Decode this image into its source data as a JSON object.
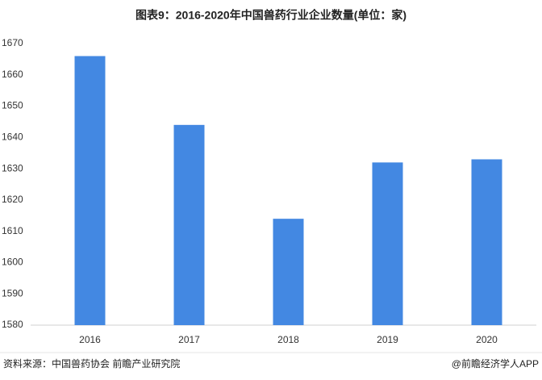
{
  "chart_data": {
    "type": "bar",
    "title": "图表9：2016-2020年中国兽药行业企业数量(单位：家)",
    "categories": [
      "2016",
      "2017",
      "2018",
      "2019",
      "2020"
    ],
    "values": [
      1666,
      1644,
      1614,
      1632,
      1633
    ],
    "color": "#4388e2",
    "ylim": [
      1580,
      1670
    ],
    "yticks": [
      1580,
      1590,
      1600,
      1610,
      1620,
      1630,
      1640,
      1650,
      1660,
      1670
    ],
    "grid": false,
    "source": "资料来源：中国兽药协会 前瞻产业研究院",
    "credit": "@前瞻经济学人APP"
  }
}
